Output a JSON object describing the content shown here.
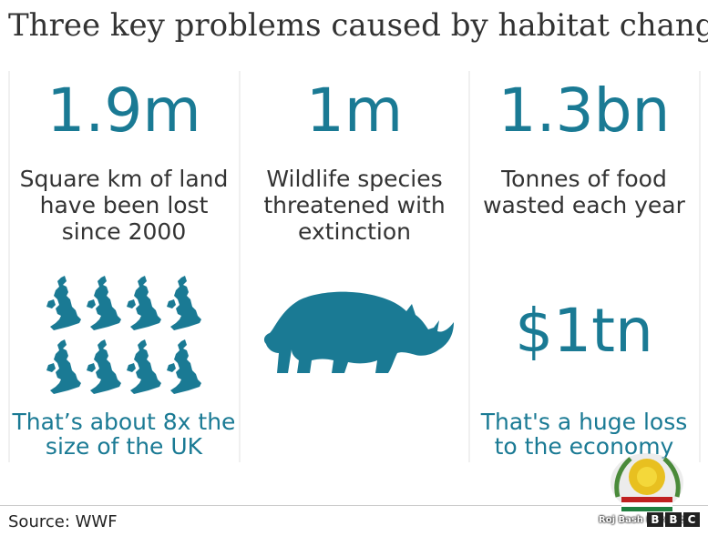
{
  "title": "Three key problems caused by habitat change",
  "columns": [
    {
      "stat": "1.9m",
      "description": "Square km of land have been lost since 2000",
      "note": "That’s about 8x the size of the UK",
      "icon": "uk-map-icon",
      "icon_count": 8
    },
    {
      "stat": "1m",
      "description": "Wildlife species threatened with extinction",
      "icon": "rhino-icon"
    },
    {
      "stat": "1.3bn",
      "description": "Tonnes of food wasted each year",
      "secondary_stat": "$1tn",
      "note": "That's a huge loss to the economy"
    }
  ],
  "source": "Source: WWF",
  "watermark": "Roj Bash Kurdistan",
  "brand": [
    "B",
    "B",
    "C"
  ],
  "colors": {
    "accent": "#1a7a94",
    "text": "#333333",
    "divider": "#f0f0f0"
  }
}
